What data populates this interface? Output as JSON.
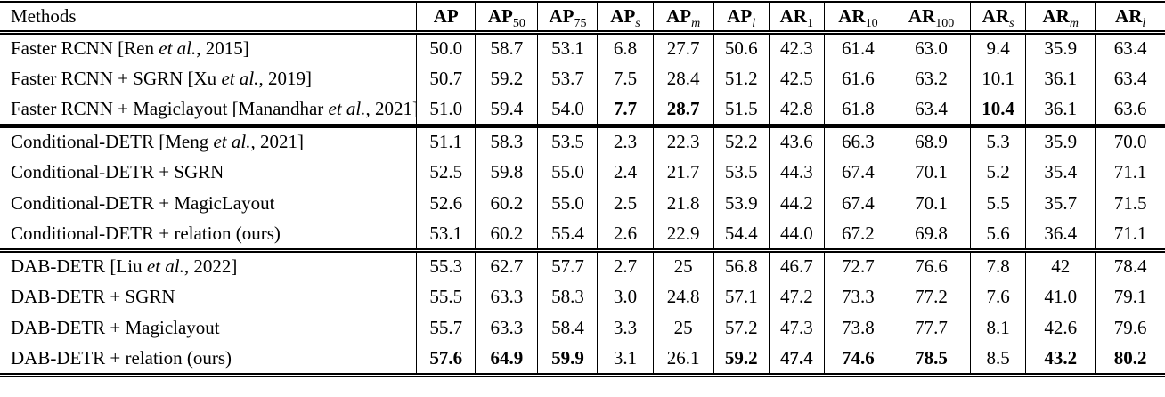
{
  "colors": {
    "text": "#000000",
    "rule": "#000000",
    "background": "#ffffff"
  },
  "table": {
    "columns": [
      {
        "label": "Methods",
        "sub": "",
        "sub_italic": false
      },
      {
        "label": "AP",
        "sub": "",
        "sub_italic": false
      },
      {
        "label": "AP",
        "sub": "50",
        "sub_italic": false
      },
      {
        "label": "AP",
        "sub": "75",
        "sub_italic": false
      },
      {
        "label": "AP",
        "sub": "s",
        "sub_italic": true
      },
      {
        "label": "AP",
        "sub": "m",
        "sub_italic": true
      },
      {
        "label": "AP",
        "sub": "l",
        "sub_italic": true
      },
      {
        "label": "AR",
        "sub": "1",
        "sub_italic": false
      },
      {
        "label": "AR",
        "sub": "10",
        "sub_italic": false
      },
      {
        "label": "AR",
        "sub": "100",
        "sub_italic": false
      },
      {
        "label": "AR",
        "sub": "s",
        "sub_italic": true
      },
      {
        "label": "AR",
        "sub": "m",
        "sub_italic": true
      },
      {
        "label": "AR",
        "sub": "l",
        "sub_italic": true
      }
    ],
    "groups": [
      {
        "rows": [
          {
            "method": [
              {
                "t": "Faster RCNN [Ren "
              },
              {
                "t": "et al.",
                "i": true
              },
              {
                "t": ", 2015]"
              }
            ],
            "values": [
              "50.0",
              "58.7",
              "53.1",
              "6.8",
              "27.7",
              "50.6",
              "42.3",
              "61.4",
              "63.0",
              "9.4",
              "35.9",
              "63.4"
            ],
            "bold": []
          },
          {
            "method": [
              {
                "t": "Faster RCNN + SGRN [Xu "
              },
              {
                "t": "et al.",
                "i": true
              },
              {
                "t": ", 2019]"
              }
            ],
            "values": [
              "50.7",
              "59.2",
              "53.7",
              "7.5",
              "28.4",
              "51.2",
              "42.5",
              "61.6",
              "63.2",
              "10.1",
              "36.1",
              "63.4"
            ],
            "bold": []
          },
          {
            "method": [
              {
                "t": "Faster RCNN + Magiclayout [Manandhar "
              },
              {
                "t": "et al.",
                "i": true
              },
              {
                "t": ", 2021]"
              }
            ],
            "values": [
              "51.0",
              "59.4",
              "54.0",
              "7.7",
              "28.7",
              "51.5",
              "42.8",
              "61.8",
              "63.4",
              "10.4",
              "36.1",
              "63.6"
            ],
            "bold": [
              3,
              4,
              9
            ]
          }
        ]
      },
      {
        "rows": [
          {
            "method": [
              {
                "t": "Conditional-DETR [Meng "
              },
              {
                "t": "et al.",
                "i": true
              },
              {
                "t": ", 2021]"
              }
            ],
            "values": [
              "51.1",
              "58.3",
              "53.5",
              "2.3",
              "22.3",
              "52.2",
              "43.6",
              "66.3",
              "68.9",
              "5.3",
              "35.9",
              "70.0"
            ],
            "bold": []
          },
          {
            "method": [
              {
                "t": "Conditional-DETR + SGRN"
              }
            ],
            "values": [
              "52.5",
              "59.8",
              "55.0",
              "2.4",
              "21.7",
              "53.5",
              "44.3",
              "67.4",
              "70.1",
              "5.2",
              "35.4",
              "71.1"
            ],
            "bold": []
          },
          {
            "method": [
              {
                "t": "Conditional-DETR + MagicLayout"
              }
            ],
            "values": [
              "52.6",
              "60.2",
              "55.0",
              "2.5",
              "21.8",
              "53.9",
              "44.2",
              "67.4",
              "70.1",
              "5.5",
              "35.7",
              "71.5"
            ],
            "bold": []
          },
          {
            "method": [
              {
                "t": "Conditional-DETR + relation (ours)"
              }
            ],
            "values": [
              "53.1",
              "60.2",
              "55.4",
              "2.6",
              "22.9",
              "54.4",
              "44.0",
              "67.2",
              "69.8",
              "5.6",
              "36.4",
              "71.1"
            ],
            "bold": []
          }
        ]
      },
      {
        "rows": [
          {
            "method": [
              {
                "t": "DAB-DETR [Liu "
              },
              {
                "t": "et al.",
                "i": true
              },
              {
                "t": ", 2022]"
              }
            ],
            "values": [
              "55.3",
              "62.7",
              "57.7",
              "2.7",
              "25",
              "56.8",
              "46.7",
              "72.7",
              "76.6",
              "7.8",
              "42",
              "78.4"
            ],
            "bold": []
          },
          {
            "method": [
              {
                "t": "DAB-DETR + SGRN"
              }
            ],
            "values": [
              "55.5",
              "63.3",
              "58.3",
              "3.0",
              "24.8",
              "57.1",
              "47.2",
              "73.3",
              "77.2",
              "7.6",
              "41.0",
              "79.1"
            ],
            "bold": []
          },
          {
            "method": [
              {
                "t": "DAB-DETR + Magiclayout"
              }
            ],
            "values": [
              "55.7",
              "63.3",
              "58.4",
              "3.3",
              "25",
              "57.2",
              "47.3",
              "73.8",
              "77.7",
              "8.1",
              "42.6",
              "79.6"
            ],
            "bold": []
          },
          {
            "method": [
              {
                "t": "DAB-DETR + relation (ours)"
              }
            ],
            "values": [
              "57.6",
              "64.9",
              "59.9",
              "3.1",
              "26.1",
              "59.2",
              "47.4",
              "74.6",
              "78.5",
              "8.5",
              "43.2",
              "80.2"
            ],
            "bold": [
              0,
              1,
              2,
              5,
              6,
              7,
              8,
              10,
              11
            ]
          }
        ]
      }
    ]
  }
}
